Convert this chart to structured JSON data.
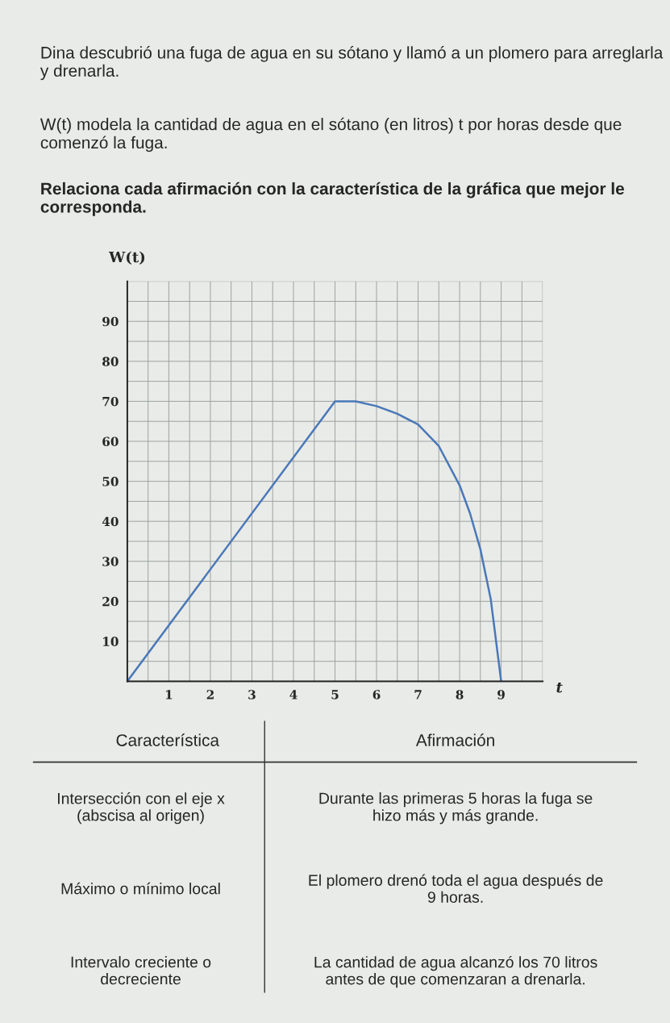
{
  "chart_data": {
    "type": "line",
    "title": "Dina descubrió una fuga de agua en su sótano y llamó a un plomero para arreglarla y drenarla.",
    "subtitle": "W(t) modela la cantidad de agua en el sótano (en litros) t por horas desde que comenzó la fuga.",
    "xlabel": "t",
    "ylabel": "W(t)",
    "series": [
      {
        "color": "#4a78b8",
        "x": [
          0,
          5,
          5.5,
          6,
          6.5,
          7,
          7.5,
          8,
          8.25,
          8.5,
          8.75,
          9
        ],
        "values": [
          0,
          70,
          70,
          68.8,
          66.9,
          64.2,
          58.8,
          49,
          42,
          33,
          20.5,
          0
        ]
      }
    ],
    "xlim": [
      0,
      10
    ],
    "ylim": [
      0,
      100
    ],
    "xticks": [
      1,
      2,
      3,
      4,
      5,
      6,
      7,
      8,
      9
    ],
    "yticks": [
      10,
      20,
      30,
      40,
      50,
      60,
      70,
      80,
      90
    ],
    "grid": true,
    "marker": "none",
    "line_style": "solid",
    "annotations": [
      "Relaciona cada afirmación con la característica de la gráfica que mejor le corresponda.",
      "Característica",
      "Afirmación",
      "Intersección con el eje x\n(abscisa al origen)",
      "Durante las primeras 5 horas la fuga se\nhizo más y más grande.",
      "Máximo o mínimo local",
      "El plomero drenó toda el agua después de\n9 horas.",
      "Intervalo creciente o\ndecreciente",
      "La cantidad de agua alcanzó los 70 litros\nantes de que comenzaran a drenarla."
    ]
  }
}
